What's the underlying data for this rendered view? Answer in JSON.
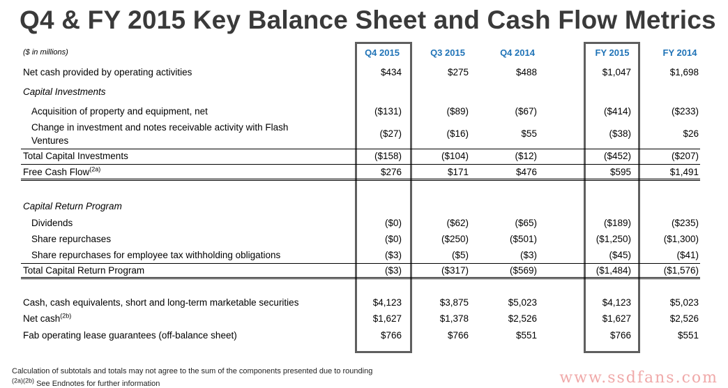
{
  "title": "Q4 & FY 2015 Key Balance Sheet and Cash Flow Metrics",
  "units_note": "($ in millions)",
  "columns": [
    "Q4 2015",
    "Q3 2015",
    "Q4 2014",
    "FY 2015",
    "FY 2014"
  ],
  "header_color": "#1f73b7",
  "rows": [
    {
      "label": "Net cash provided by operating activities",
      "values": [
        "$434",
        "$275",
        "$488",
        "$1,047",
        "$1,698"
      ]
    },
    {
      "label": "Capital Investments",
      "values": [
        "",
        "",
        "",
        "",
        ""
      ]
    },
    {
      "label": "Acquisition of property and equipment, net",
      "values": [
        "($131)",
        "($89)",
        "($67)",
        "($414)",
        "($233)"
      ]
    },
    {
      "label_line1": "Change in investment and notes receivable activity with Flash",
      "label_line2": "Ventures",
      "values": [
        "($27)",
        "($16)",
        "$55",
        "($38)",
        "$26"
      ]
    },
    {
      "label": "Total Capital Investments",
      "values": [
        "($158)",
        "($104)",
        "($12)",
        "($452)",
        "($207)"
      ]
    },
    {
      "label": "Free Cash Flow",
      "sup": "(2a)",
      "values": [
        "$276",
        "$171",
        "$476",
        "$595",
        "$1,491"
      ]
    },
    {
      "label": "Capital Return Program",
      "values": [
        "",
        "",
        "",
        "",
        ""
      ]
    },
    {
      "label": "Dividends",
      "values": [
        "($0)",
        "($62)",
        "($65)",
        "($189)",
        "($235)"
      ]
    },
    {
      "label": "Share repurchases",
      "values": [
        "($0)",
        "($250)",
        "($501)",
        "($1,250)",
        "($1,300)"
      ]
    },
    {
      "label": "Share repurchases for employee tax withholding obligations",
      "values": [
        "($3)",
        "($5)",
        "($3)",
        "($45)",
        "($41)"
      ]
    },
    {
      "label": "Total Capital Return Program",
      "values": [
        "($3)",
        "($317)",
        "($569)",
        "($1,484)",
        "($1,576)"
      ]
    },
    {
      "label": "Cash, cash equivalents, short and long-term marketable securities",
      "values": [
        "$4,123",
        "$3,875",
        "$5,023",
        "$4,123",
        "$5,023"
      ]
    },
    {
      "label": "Net cash",
      "sup": "(2b)",
      "values": [
        "$1,627",
        "$1,378",
        "$2,526",
        "$1,627",
        "$2,526"
      ]
    },
    {
      "label": "Fab operating lease guarantees (off-balance sheet)",
      "values": [
        "$766",
        "$766",
        "$551",
        "$766",
        "$551"
      ]
    }
  ],
  "footnote_1": "Calculation of subtotals and totals may not agree to the sum of the components presented due to rounding",
  "footnote_2_sup": "(2a)(2b)",
  "footnote_2": " See Endnotes for further information",
  "watermark": "www.ssdfans.com"
}
